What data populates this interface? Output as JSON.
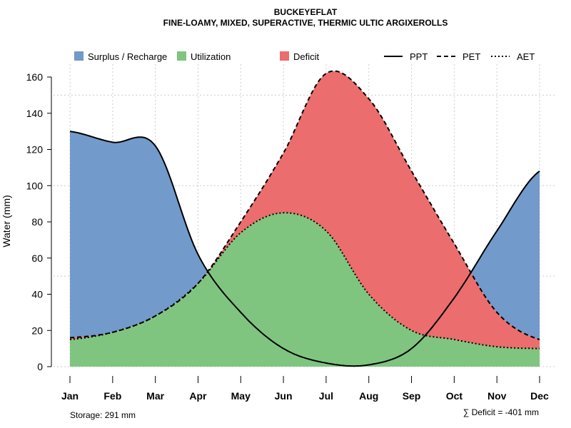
{
  "chart_data": {
    "type": "area",
    "title": "BUCKEYEFLAT",
    "subtitle": "FINE-LOAMY, MIXED, SUPERACTIVE, THERMIC ULTIC ARGIXEROLLS",
    "ylabel": "Water (mm)",
    "xlabel": "",
    "ylim": [
      0,
      167
    ],
    "yticks": [
      0,
      20,
      40,
      60,
      80,
      100,
      120,
      140,
      160
    ],
    "categories": [
      "Jan",
      "Feb",
      "Mar",
      "Apr",
      "May",
      "Jun",
      "Jul",
      "Aug",
      "Sep",
      "Oct",
      "Nov",
      "Dec"
    ],
    "series": [
      {
        "name": "PPT",
        "values": [
          130,
          124,
          122,
          62,
          30,
          10,
          2,
          1,
          10,
          38,
          75,
          108
        ]
      },
      {
        "name": "PET",
        "values": [
          16,
          19,
          28,
          46,
          80,
          118,
          162,
          148,
          108,
          68,
          30,
          15
        ]
      },
      {
        "name": "AET",
        "values": [
          15,
          19,
          28,
          46,
          74,
          85,
          75,
          40,
          20,
          15,
          11,
          10
        ]
      }
    ],
    "legend": [
      {
        "label": "Surplus / Recharge",
        "color": "#729ACA"
      },
      {
        "label": "Utilization",
        "color": "#7FC57F"
      },
      {
        "label": "Deficit",
        "color": "#EB6D6D"
      },
      {
        "label": "PPT",
        "style": "solid"
      },
      {
        "label": "PET",
        "style": "dashed"
      },
      {
        "label": "AET",
        "style": "dotted"
      }
    ],
    "legend_position": "top",
    "grid": true,
    "annotations": {
      "storage": "Storage: 291 mm",
      "deficit": "∑ Deficit = -401 mm"
    }
  }
}
